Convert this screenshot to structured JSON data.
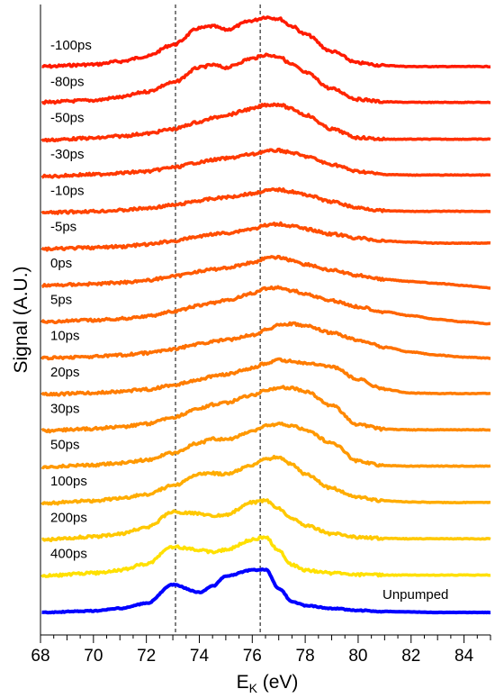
{
  "chart_data": {
    "type": "line",
    "xlabel": "E",
    "xlabel_sub": "K",
    "xlabel_unit": " (eV)",
    "ylabel": "Signal (A.U.)",
    "xlim": [
      68,
      85
    ],
    "x_ticks": [
      68,
      70,
      72,
      74,
      76,
      78,
      80,
      82,
      84
    ],
    "y_ticks": [],
    "grid": false,
    "legend": "none",
    "reference_lines": [
      {
        "x": 73.1,
        "style": "dashed"
      },
      {
        "x": 76.3,
        "style": "dashed"
      }
    ],
    "x": [
      68,
      70,
      71,
      72,
      73,
      74,
      74.5,
      75,
      76,
      76.5,
      77,
      77.5,
      78,
      79,
      80,
      81,
      82,
      83,
      84,
      85
    ],
    "series": [
      {
        "name": "-100ps",
        "color": "#ff1a00",
        "values": [
          0.02,
          0.06,
          0.12,
          0.22,
          0.45,
          0.78,
          0.82,
          0.75,
          0.93,
          1.0,
          0.97,
          0.82,
          0.66,
          0.32,
          0.09,
          0.04,
          0.02,
          0.02,
          0.02,
          0.02
        ]
      },
      {
        "name": "-80ps",
        "color": "#ff2500",
        "values": [
          0.03,
          0.07,
          0.13,
          0.24,
          0.42,
          0.72,
          0.77,
          0.72,
          0.9,
          0.97,
          0.94,
          0.78,
          0.62,
          0.3,
          0.09,
          0.04,
          0.03,
          0.03,
          0.03,
          0.03
        ]
      },
      {
        "name": "-50ps",
        "color": "#ff3000",
        "values": [
          0.0,
          0.04,
          0.08,
          0.13,
          0.22,
          0.36,
          0.44,
          0.5,
          0.62,
          0.7,
          0.71,
          0.62,
          0.5,
          0.22,
          0.05,
          0.02,
          0.02,
          0.02,
          0.02,
          0.02
        ]
      },
      {
        "name": "-30ps",
        "color": "#ff3a00",
        "values": [
          0.0,
          0.04,
          0.07,
          0.1,
          0.18,
          0.28,
          0.33,
          0.36,
          0.44,
          0.5,
          0.52,
          0.47,
          0.4,
          0.24,
          0.1,
          0.04,
          0.03,
          0.03,
          0.03,
          0.03
        ]
      },
      {
        "name": "-10ps",
        "color": "#ff4400",
        "values": [
          0.0,
          0.03,
          0.05,
          0.09,
          0.15,
          0.24,
          0.28,
          0.31,
          0.38,
          0.44,
          0.46,
          0.42,
          0.36,
          0.22,
          0.1,
          0.04,
          0.03,
          0.03,
          0.03,
          0.03
        ]
      },
      {
        "name": "-5ps",
        "color": "#ff4e00",
        "values": [
          0.0,
          0.03,
          0.05,
          0.09,
          0.16,
          0.25,
          0.3,
          0.32,
          0.4,
          0.47,
          0.5,
          0.46,
          0.4,
          0.3,
          0.22,
          0.16,
          0.14,
          0.12,
          0.12,
          0.12
        ]
      },
      {
        "name": "0ps",
        "color": "#ff5a00",
        "values": [
          0.0,
          0.03,
          0.06,
          0.1,
          0.18,
          0.28,
          0.32,
          0.35,
          0.45,
          0.54,
          0.56,
          0.5,
          0.42,
          0.3,
          0.2,
          0.12,
          0.08,
          0.04,
          0.0,
          -0.05
        ]
      },
      {
        "name": "5ps",
        "color": "#ff6500",
        "values": [
          0.0,
          0.03,
          0.06,
          0.11,
          0.2,
          0.32,
          0.38,
          0.42,
          0.56,
          0.66,
          0.68,
          0.62,
          0.55,
          0.42,
          0.3,
          0.2,
          0.12,
          0.05,
          0.0,
          -0.04
        ]
      },
      {
        "name": "10ps",
        "color": "#ff7000",
        "values": [
          0.0,
          0.03,
          0.06,
          0.1,
          0.18,
          0.28,
          0.33,
          0.36,
          0.46,
          0.56,
          0.66,
          0.68,
          0.64,
          0.5,
          0.36,
          0.22,
          0.12,
          0.06,
          0.02,
          0.0
        ]
      },
      {
        "name": "20ps",
        "color": "#ff7c00",
        "values": [
          0.0,
          0.03,
          0.06,
          0.1,
          0.18,
          0.3,
          0.36,
          0.4,
          0.52,
          0.62,
          0.68,
          0.66,
          0.62,
          0.55,
          0.3,
          0.1,
          0.03,
          0.02,
          0.02,
          0.02
        ]
      },
      {
        "name": "30ps",
        "color": "#ff8800",
        "values": [
          0.0,
          0.04,
          0.08,
          0.14,
          0.27,
          0.44,
          0.52,
          0.56,
          0.7,
          0.8,
          0.86,
          0.85,
          0.78,
          0.5,
          0.12,
          0.03,
          0.02,
          0.02,
          0.02,
          0.02
        ]
      },
      {
        "name": "50ps",
        "color": "#ff9800",
        "values": [
          0.0,
          0.04,
          0.08,
          0.14,
          0.28,
          0.48,
          0.56,
          0.55,
          0.7,
          0.82,
          0.85,
          0.82,
          0.74,
          0.48,
          0.12,
          0.03,
          0.02,
          0.02,
          0.02,
          0.02
        ]
      },
      {
        "name": "100ps",
        "color": "#ffac00",
        "values": [
          0.0,
          0.05,
          0.1,
          0.18,
          0.35,
          0.58,
          0.6,
          0.58,
          0.75,
          0.88,
          0.92,
          0.78,
          0.58,
          0.3,
          0.12,
          0.05,
          0.03,
          0.02,
          0.02,
          0.02
        ]
      },
      {
        "name": "200ps",
        "color": "#ffc800",
        "values": [
          0.0,
          0.06,
          0.12,
          0.24,
          0.55,
          0.52,
          0.48,
          0.5,
          0.74,
          0.78,
          0.62,
          0.42,
          0.28,
          0.12,
          0.05,
          0.03,
          0.02,
          0.02,
          0.02,
          0.02
        ]
      },
      {
        "name": "400ps",
        "color": "#ffe000",
        "values": [
          0.0,
          0.06,
          0.12,
          0.24,
          0.58,
          0.52,
          0.48,
          0.52,
          0.72,
          0.78,
          0.5,
          0.22,
          0.12,
          0.06,
          0.03,
          0.02,
          0.02,
          0.02,
          0.02,
          0.02
        ]
      },
      {
        "name": "Unpumped",
        "color": "#0000ff",
        "values": [
          0.0,
          0.03,
          0.08,
          0.18,
          0.55,
          0.4,
          0.52,
          0.72,
          0.84,
          0.85,
          0.48,
          0.22,
          0.14,
          0.08,
          0.04,
          0.02,
          0.01,
          0.0,
          0.0,
          0.0
        ]
      }
    ]
  }
}
